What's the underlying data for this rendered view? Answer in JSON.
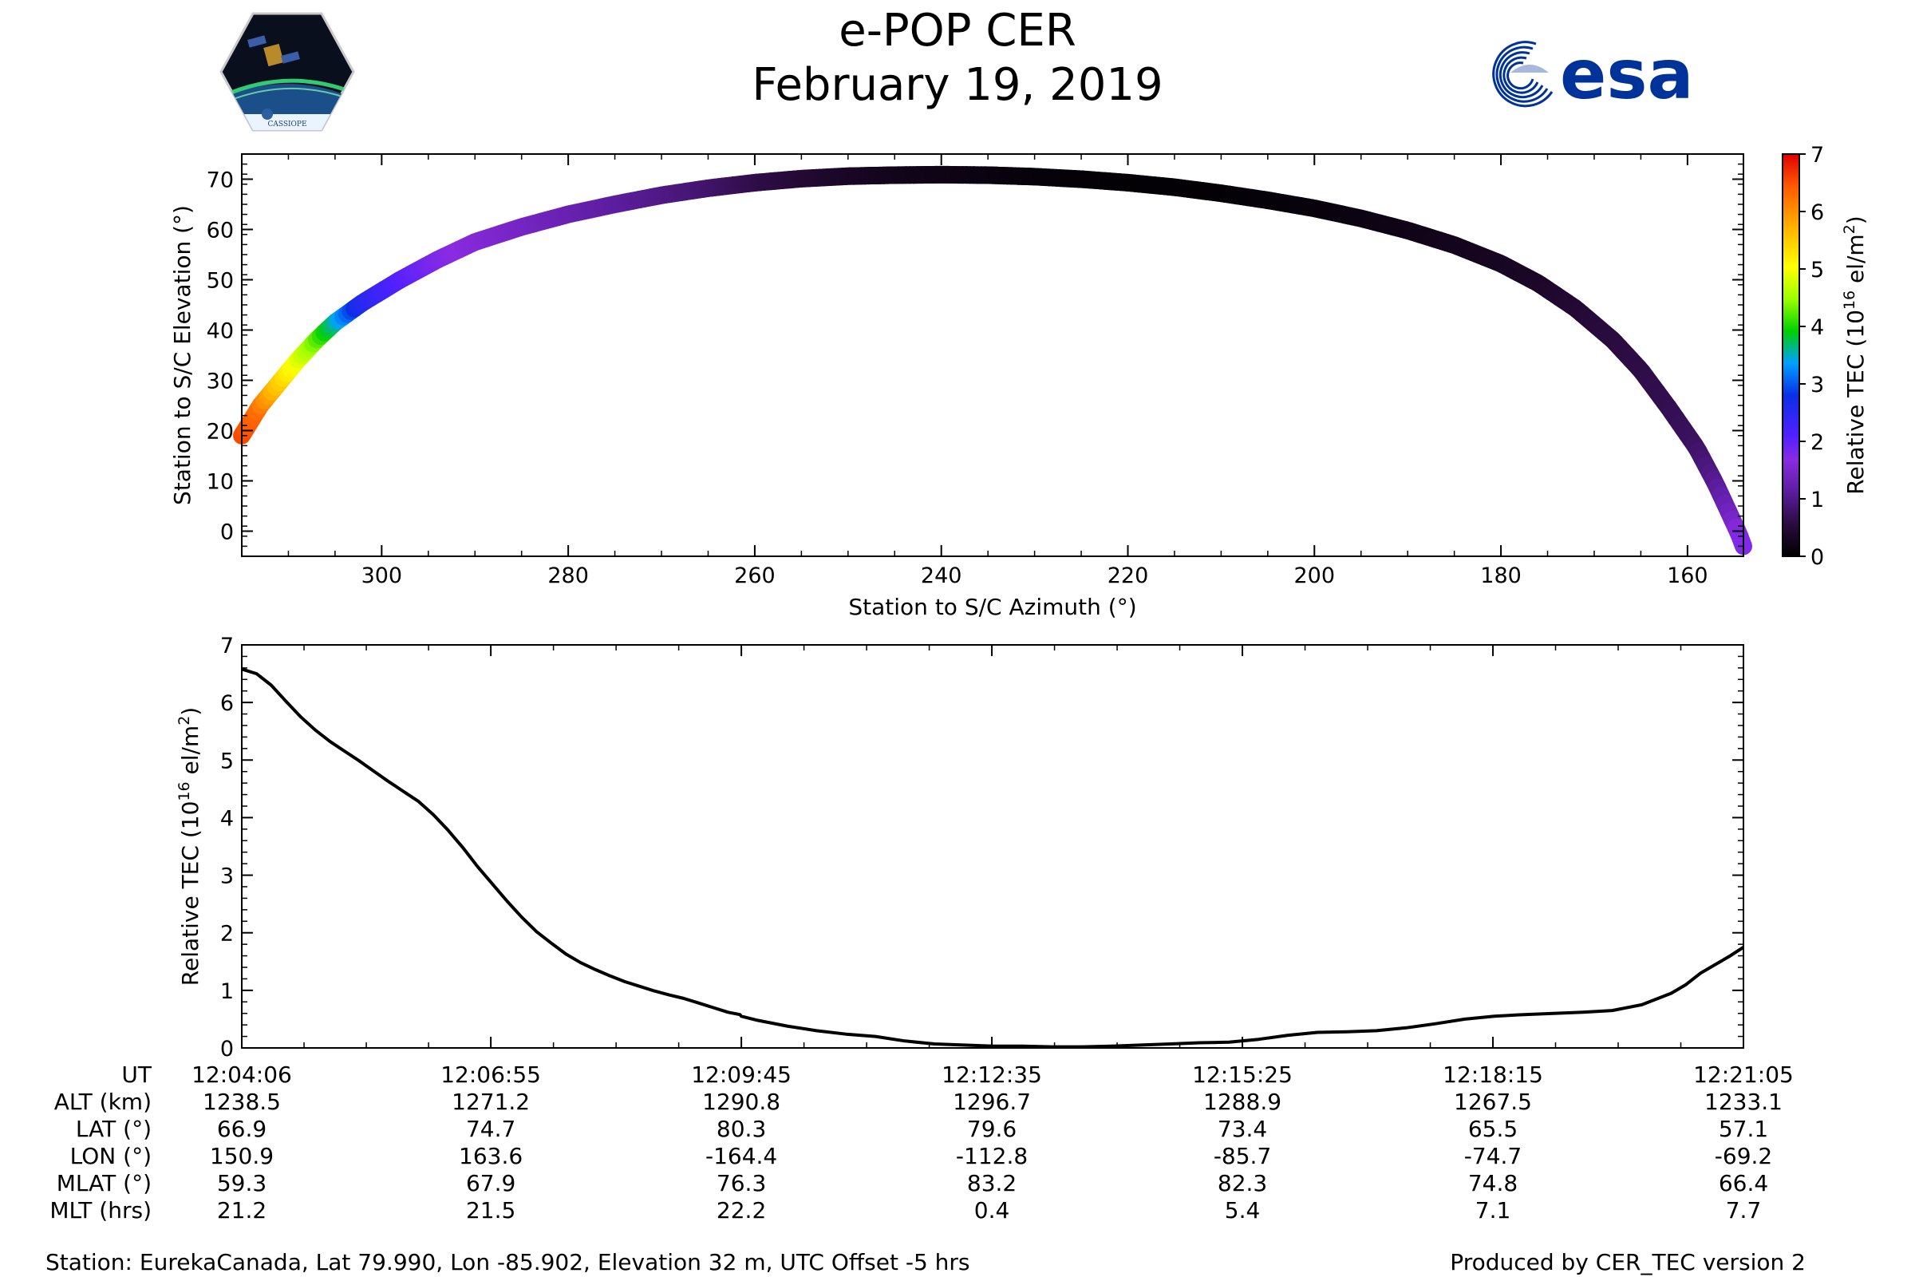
{
  "header": {
    "title": "e-POP CER",
    "date": "February 19, 2019",
    "left_logo": {
      "name": "cassiope-logo",
      "text": "CASSIOPE"
    },
    "right_logo": {
      "name": "esa-logo",
      "text": "esa",
      "color": "#003399"
    }
  },
  "chart_data": [
    {
      "type": "scatter",
      "title": "",
      "xlabel": "Station to S/C Azimuth (°)",
      "ylabel": "Station to S/C Elevation (°)",
      "xlim": [
        315,
        154
      ],
      "ylim": [
        -5,
        75
      ],
      "xticks": [
        300,
        280,
        260,
        240,
        220,
        200,
        180,
        160
      ],
      "yticks": [
        0,
        10,
        20,
        30,
        40,
        50,
        60,
        70
      ],
      "colorbar": {
        "label": "Relative TEC (10^16 el/m^2)",
        "range": [
          0,
          7
        ],
        "ticks": [
          0,
          1,
          2,
          3,
          4,
          5,
          6,
          7
        ],
        "colormap": "gnuplot-rainbow"
      },
      "track": {
        "azimuth": [
          315,
          313,
          311,
          309,
          307,
          305,
          302,
          298,
          294,
          290,
          285,
          280,
          275,
          270,
          265,
          260,
          255,
          250,
          245,
          240,
          235,
          230,
          225,
          220,
          215,
          210,
          205,
          200,
          195,
          190,
          185,
          180,
          176,
          172,
          168,
          165,
          162,
          159,
          157,
          155.5,
          154.5,
          154
        ],
        "elevation": [
          19,
          25,
          29.5,
          34,
          38,
          41.5,
          45.5,
          50,
          54,
          57.5,
          60.5,
          63,
          65,
          66.8,
          68.2,
          69.3,
          70.1,
          70.6,
          70.8,
          70.9,
          70.8,
          70.5,
          70,
          69.3,
          68.4,
          67.2,
          65.8,
          64.2,
          62.2,
          59.8,
          56.9,
          53.2,
          49.3,
          44.3,
          38,
          32,
          24.5,
          16.5,
          9.5,
          3.5,
          -0.5,
          -3
        ],
        "tec": [
          6.6,
          6.3,
          5.6,
          5,
          4.4,
          3.7,
          2.6,
          2.1,
          1.8,
          1.6,
          1.45,
          1.3,
          1.15,
          1.0,
          0.85,
          0.65,
          0.5,
          0.35,
          0.25,
          0.2,
          0.15,
          0.1,
          0.07,
          0.05,
          0.04,
          0.05,
          0.08,
          0.1,
          0.15,
          0.2,
          0.25,
          0.3,
          0.35,
          0.45,
          0.55,
          0.6,
          0.65,
          0.75,
          1.0,
          1.3,
          1.55,
          1.75
        ]
      }
    },
    {
      "type": "line",
      "title": "",
      "xlabel": "",
      "ylabel": "Relative TEC (10^16 el/m^2)",
      "ylim": [
        0,
        7
      ],
      "yticks": [
        0,
        1,
        2,
        3,
        4,
        5,
        6,
        7
      ],
      "xlim": [
        0,
        1019
      ],
      "x_tick_seconds": [
        0,
        169,
        339,
        509,
        679,
        849,
        1019
      ],
      "series": [
        {
          "name": "Relative TEC",
          "color": "#000000",
          "t": [
            0,
            10,
            20,
            30,
            40,
            50,
            60,
            70,
            80,
            90,
            100,
            110,
            120,
            130,
            140,
            150,
            160,
            170,
            180,
            190,
            200,
            210,
            220,
            230,
            240,
            250,
            260,
            270,
            280,
            290,
            300,
            310,
            320,
            330,
            338,
            339,
            350,
            370,
            390,
            410,
            430,
            450,
            470,
            490,
            510,
            530,
            550,
            570,
            590,
            610,
            630,
            650,
            670,
            690,
            710,
            730,
            750,
            770,
            790,
            810,
            830,
            850,
            870,
            890,
            910,
            930,
            950,
            970,
            980,
            990,
            1000,
            1010,
            1019
          ],
          "v": [
            6.58,
            6.5,
            6.3,
            6.02,
            5.75,
            5.52,
            5.32,
            5.15,
            4.98,
            4.8,
            4.62,
            4.45,
            4.28,
            4.05,
            3.78,
            3.48,
            3.15,
            2.85,
            2.55,
            2.27,
            2.02,
            1.82,
            1.63,
            1.48,
            1.36,
            1.25,
            1.15,
            1.07,
            0.99,
            0.92,
            0.86,
            0.78,
            0.7,
            0.62,
            0.58,
            0.55,
            0.48,
            0.38,
            0.3,
            0.24,
            0.2,
            0.12,
            0.07,
            0.05,
            0.03,
            0.03,
            0.02,
            0.02,
            0.03,
            0.05,
            0.07,
            0.09,
            0.1,
            0.15,
            0.22,
            0.27,
            0.28,
            0.3,
            0.35,
            0.42,
            0.5,
            0.55,
            0.58,
            0.6,
            0.62,
            0.65,
            0.75,
            0.95,
            1.1,
            1.3,
            1.45,
            1.6,
            1.75
          ]
        }
      ]
    }
  ],
  "table": {
    "rows": [
      {
        "label": "UT",
        "values": [
          "12:04:06",
          "12:06:55",
          "12:09:45",
          "12:12:35",
          "12:15:25",
          "12:18:15",
          "12:21:05"
        ]
      },
      {
        "label": "ALT (km)",
        "values": [
          "1238.5",
          "1271.2",
          "1290.8",
          "1296.7",
          "1288.9",
          "1267.5",
          "1233.1"
        ]
      },
      {
        "label": "LAT (°)",
        "values": [
          "66.9",
          "74.7",
          "80.3",
          "79.6",
          "73.4",
          "65.5",
          "57.1"
        ]
      },
      {
        "label": "LON (°)",
        "values": [
          "150.9",
          "163.6",
          "-164.4",
          "-112.8",
          "-85.7",
          "-74.7",
          "-69.2"
        ]
      },
      {
        "label": "MLAT (°)",
        "values": [
          "59.3",
          "67.9",
          "76.3",
          "83.2",
          "82.3",
          "74.8",
          "66.4"
        ]
      },
      {
        "label": "MLT (hrs)",
        "values": [
          "21.2",
          "21.5",
          "22.2",
          "0.4",
          "5.4",
          "7.1",
          "7.7"
        ]
      }
    ]
  },
  "footer": {
    "station": "Station: EurekaCanada, Lat 79.990, Lon -85.902, Elevation 32 m, UTC Offset -5 hrs",
    "produced": "Produced by CER_TEC version 2"
  }
}
